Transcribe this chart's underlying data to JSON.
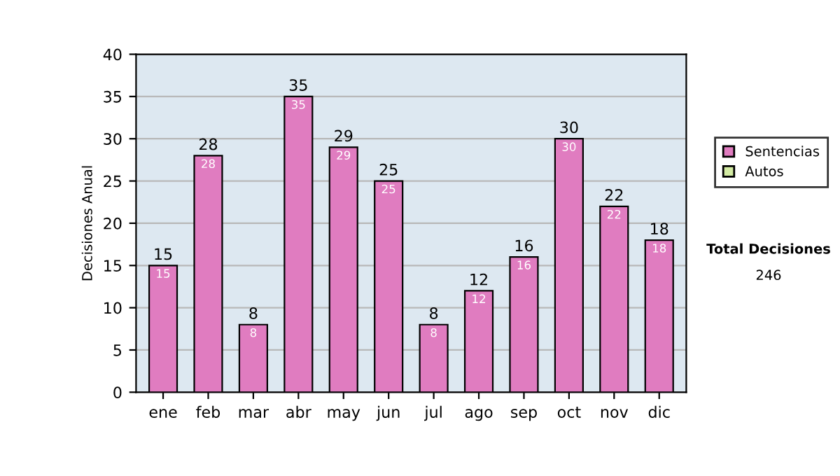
{
  "chart_data": {
    "type": "bar",
    "ylabel": "Decisiones Anual",
    "categories": [
      "ene",
      "feb",
      "mar",
      "abr",
      "may",
      "jun",
      "jul",
      "ago",
      "sep",
      "oct",
      "nov",
      "dic"
    ],
    "series": [
      {
        "name": "Sentencias",
        "color": "#e07cc0",
        "values": [
          15,
          28,
          8,
          35,
          29,
          25,
          8,
          12,
          16,
          30,
          22,
          18
        ],
        "value_labels": [
          "15",
          "28",
          "8",
          "35",
          "29",
          "25",
          "8",
          "12",
          "16",
          "30",
          "22",
          "18"
        ]
      },
      {
        "name": "Autos",
        "color": "#d4eca4",
        "values": [
          null,
          null,
          null,
          null,
          null,
          null,
          null,
          null,
          null,
          null,
          null,
          null
        ]
      }
    ],
    "ylim": [
      0,
      40
    ],
    "yticks": [
      0,
      5,
      10,
      15,
      20,
      25,
      30,
      35,
      40
    ],
    "grid": "y",
    "legend": "right",
    "annotations": [
      "Total Decisiones",
      "246",
      {
        "text": "15",
        "x": "ene",
        "y": 15
      },
      {
        "text": "28",
        "x": "feb",
        "y": 28
      },
      {
        "text": "8",
        "x": "mar",
        "y": 8
      },
      {
        "text": "35",
        "x": "abr",
        "y": 35
      },
      {
        "text": "29",
        "x": "may",
        "y": 29
      },
      {
        "text": "25",
        "x": "jun",
        "y": 25
      },
      {
        "text": "8",
        "x": "jul",
        "y": 8
      },
      {
        "text": "12",
        "x": "ago",
        "y": 12
      },
      {
        "text": "16",
        "x": "sep",
        "y": 16
      },
      {
        "text": "30",
        "x": "oct",
        "y": 30
      },
      {
        "text": "22",
        "x": "nov",
        "y": 22
      },
      {
        "text": "18",
        "x": "dic",
        "y": 18
      }
    ]
  }
}
